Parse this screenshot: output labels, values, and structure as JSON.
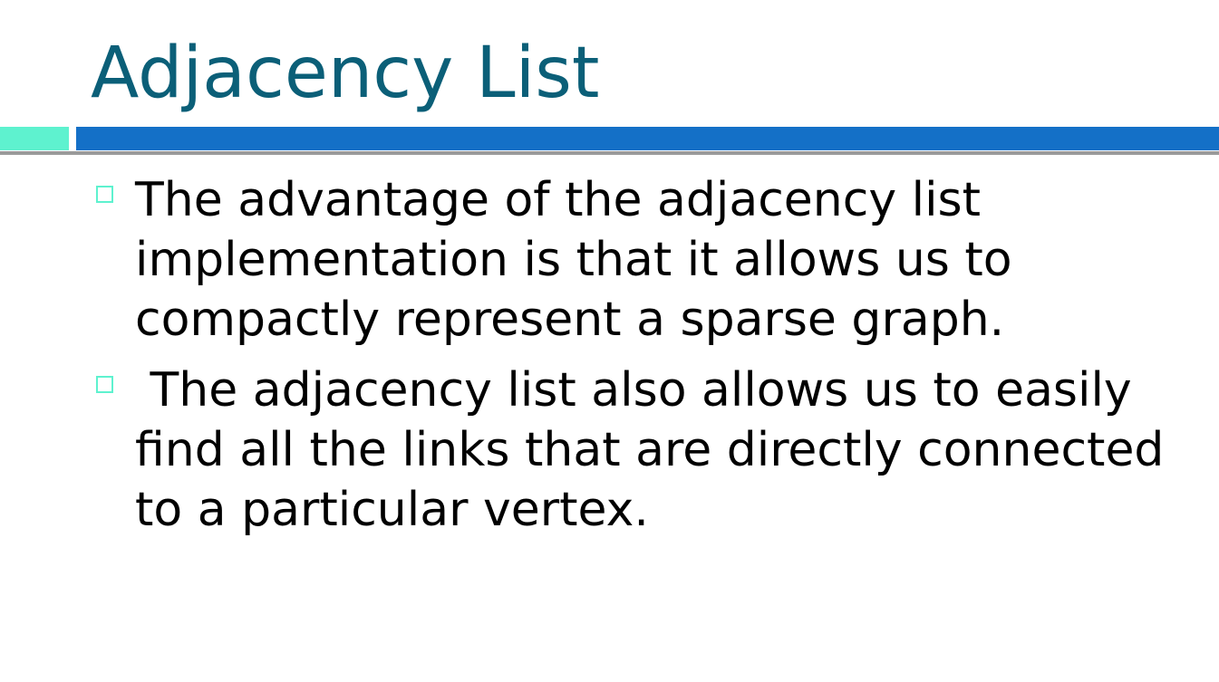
{
  "slide": {
    "title": "Adjacency List",
    "bullets": [
      {
        "text": "The advantage of the adjacency list implementation is that it allows us to compactly represent a sparse graph."
      },
      {
        "text": " The adjacency list also allows us to easily find all the links that are directly connected to a particular vertex."
      }
    ]
  },
  "colors": {
    "title": "#0b5f78",
    "accent": "#5ef2cf",
    "bar": "#1470c7",
    "rule": "#9a9a9a",
    "text": "#000000"
  }
}
